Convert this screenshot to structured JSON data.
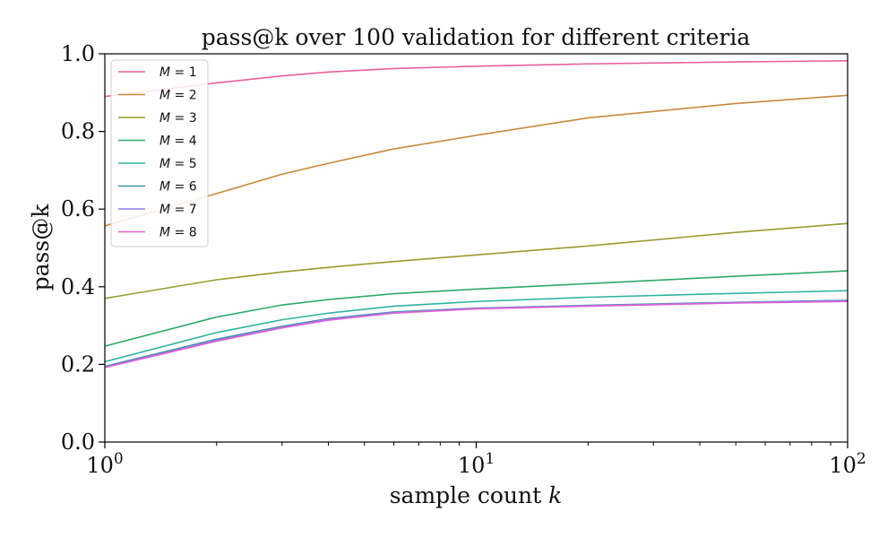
{
  "chart_data": {
    "type": "line",
    "title": "pass@k over 100 validation for different criteria",
    "xlabel": "sample count",
    "xlabel_var": "k",
    "ylabel": "pass@k",
    "xscale": "log",
    "xlim": [
      1,
      100
    ],
    "ylim": [
      0,
      1
    ],
    "x_ticks": [
      {
        "value": 1,
        "base": "10",
        "exp": "0"
      },
      {
        "value": 10,
        "base": "10",
        "exp": "1"
      },
      {
        "value": 100,
        "base": "10",
        "exp": "2"
      }
    ],
    "y_ticks": [
      {
        "value": 0.0,
        "label": "0.0"
      },
      {
        "value": 0.2,
        "label": "0.2"
      },
      {
        "value": 0.4,
        "label": "0.4"
      },
      {
        "value": 0.6,
        "label": "0.6"
      },
      {
        "value": 0.8,
        "label": "0.8"
      },
      {
        "value": 1.0,
        "label": "1.0"
      }
    ],
    "legend_position": "top-left",
    "x": [
      1,
      2,
      3,
      4,
      6,
      10,
      20,
      50,
      100
    ],
    "series": [
      {
        "name": "M = 1",
        "var": "M",
        "eq": " = 1",
        "color": "#e8609a",
        "values": [
          0.89,
          0.925,
          0.943,
          0.953,
          0.962,
          0.968,
          0.974,
          0.979,
          0.982
        ]
      },
      {
        "name": "M = 2",
        "var": "M",
        "eq": " = 2",
        "color": "#c8893c",
        "values": [
          0.557,
          0.64,
          0.69,
          0.718,
          0.755,
          0.79,
          0.835,
          0.872,
          0.893
        ]
      },
      {
        "name": "M = 3",
        "var": "M",
        "eq": " = 3",
        "color": "#9a9a2e",
        "values": [
          0.37,
          0.418,
          0.438,
          0.45,
          0.465,
          0.482,
          0.505,
          0.54,
          0.563
        ]
      },
      {
        "name": "M = 4",
        "var": "M",
        "eq": " = 4",
        "color": "#2eaa6a",
        "values": [
          0.247,
          0.322,
          0.353,
          0.367,
          0.382,
          0.394,
          0.408,
          0.427,
          0.441
        ]
      },
      {
        "name": "M = 5",
        "var": "M",
        "eq": " = 5",
        "color": "#2fb3a0",
        "values": [
          0.207,
          0.282,
          0.315,
          0.332,
          0.35,
          0.362,
          0.373,
          0.383,
          0.39
        ]
      },
      {
        "name": "M = 6",
        "var": "M",
        "eq": " = 6",
        "color": "#3a92a8",
        "values": [
          0.195,
          0.265,
          0.298,
          0.318,
          0.335,
          0.345,
          0.352,
          0.36,
          0.365
        ]
      },
      {
        "name": "M = 7",
        "var": "M",
        "eq": " = 7",
        "color": "#8f7de0",
        "values": [
          0.193,
          0.262,
          0.296,
          0.316,
          0.333,
          0.344,
          0.351,
          0.359,
          0.364
        ]
      },
      {
        "name": "M = 8",
        "var": "M",
        "eq": " = 8",
        "color": "#e060d6",
        "values": [
          0.192,
          0.26,
          0.294,
          0.314,
          0.332,
          0.343,
          0.35,
          0.358,
          0.362
        ]
      }
    ]
  }
}
